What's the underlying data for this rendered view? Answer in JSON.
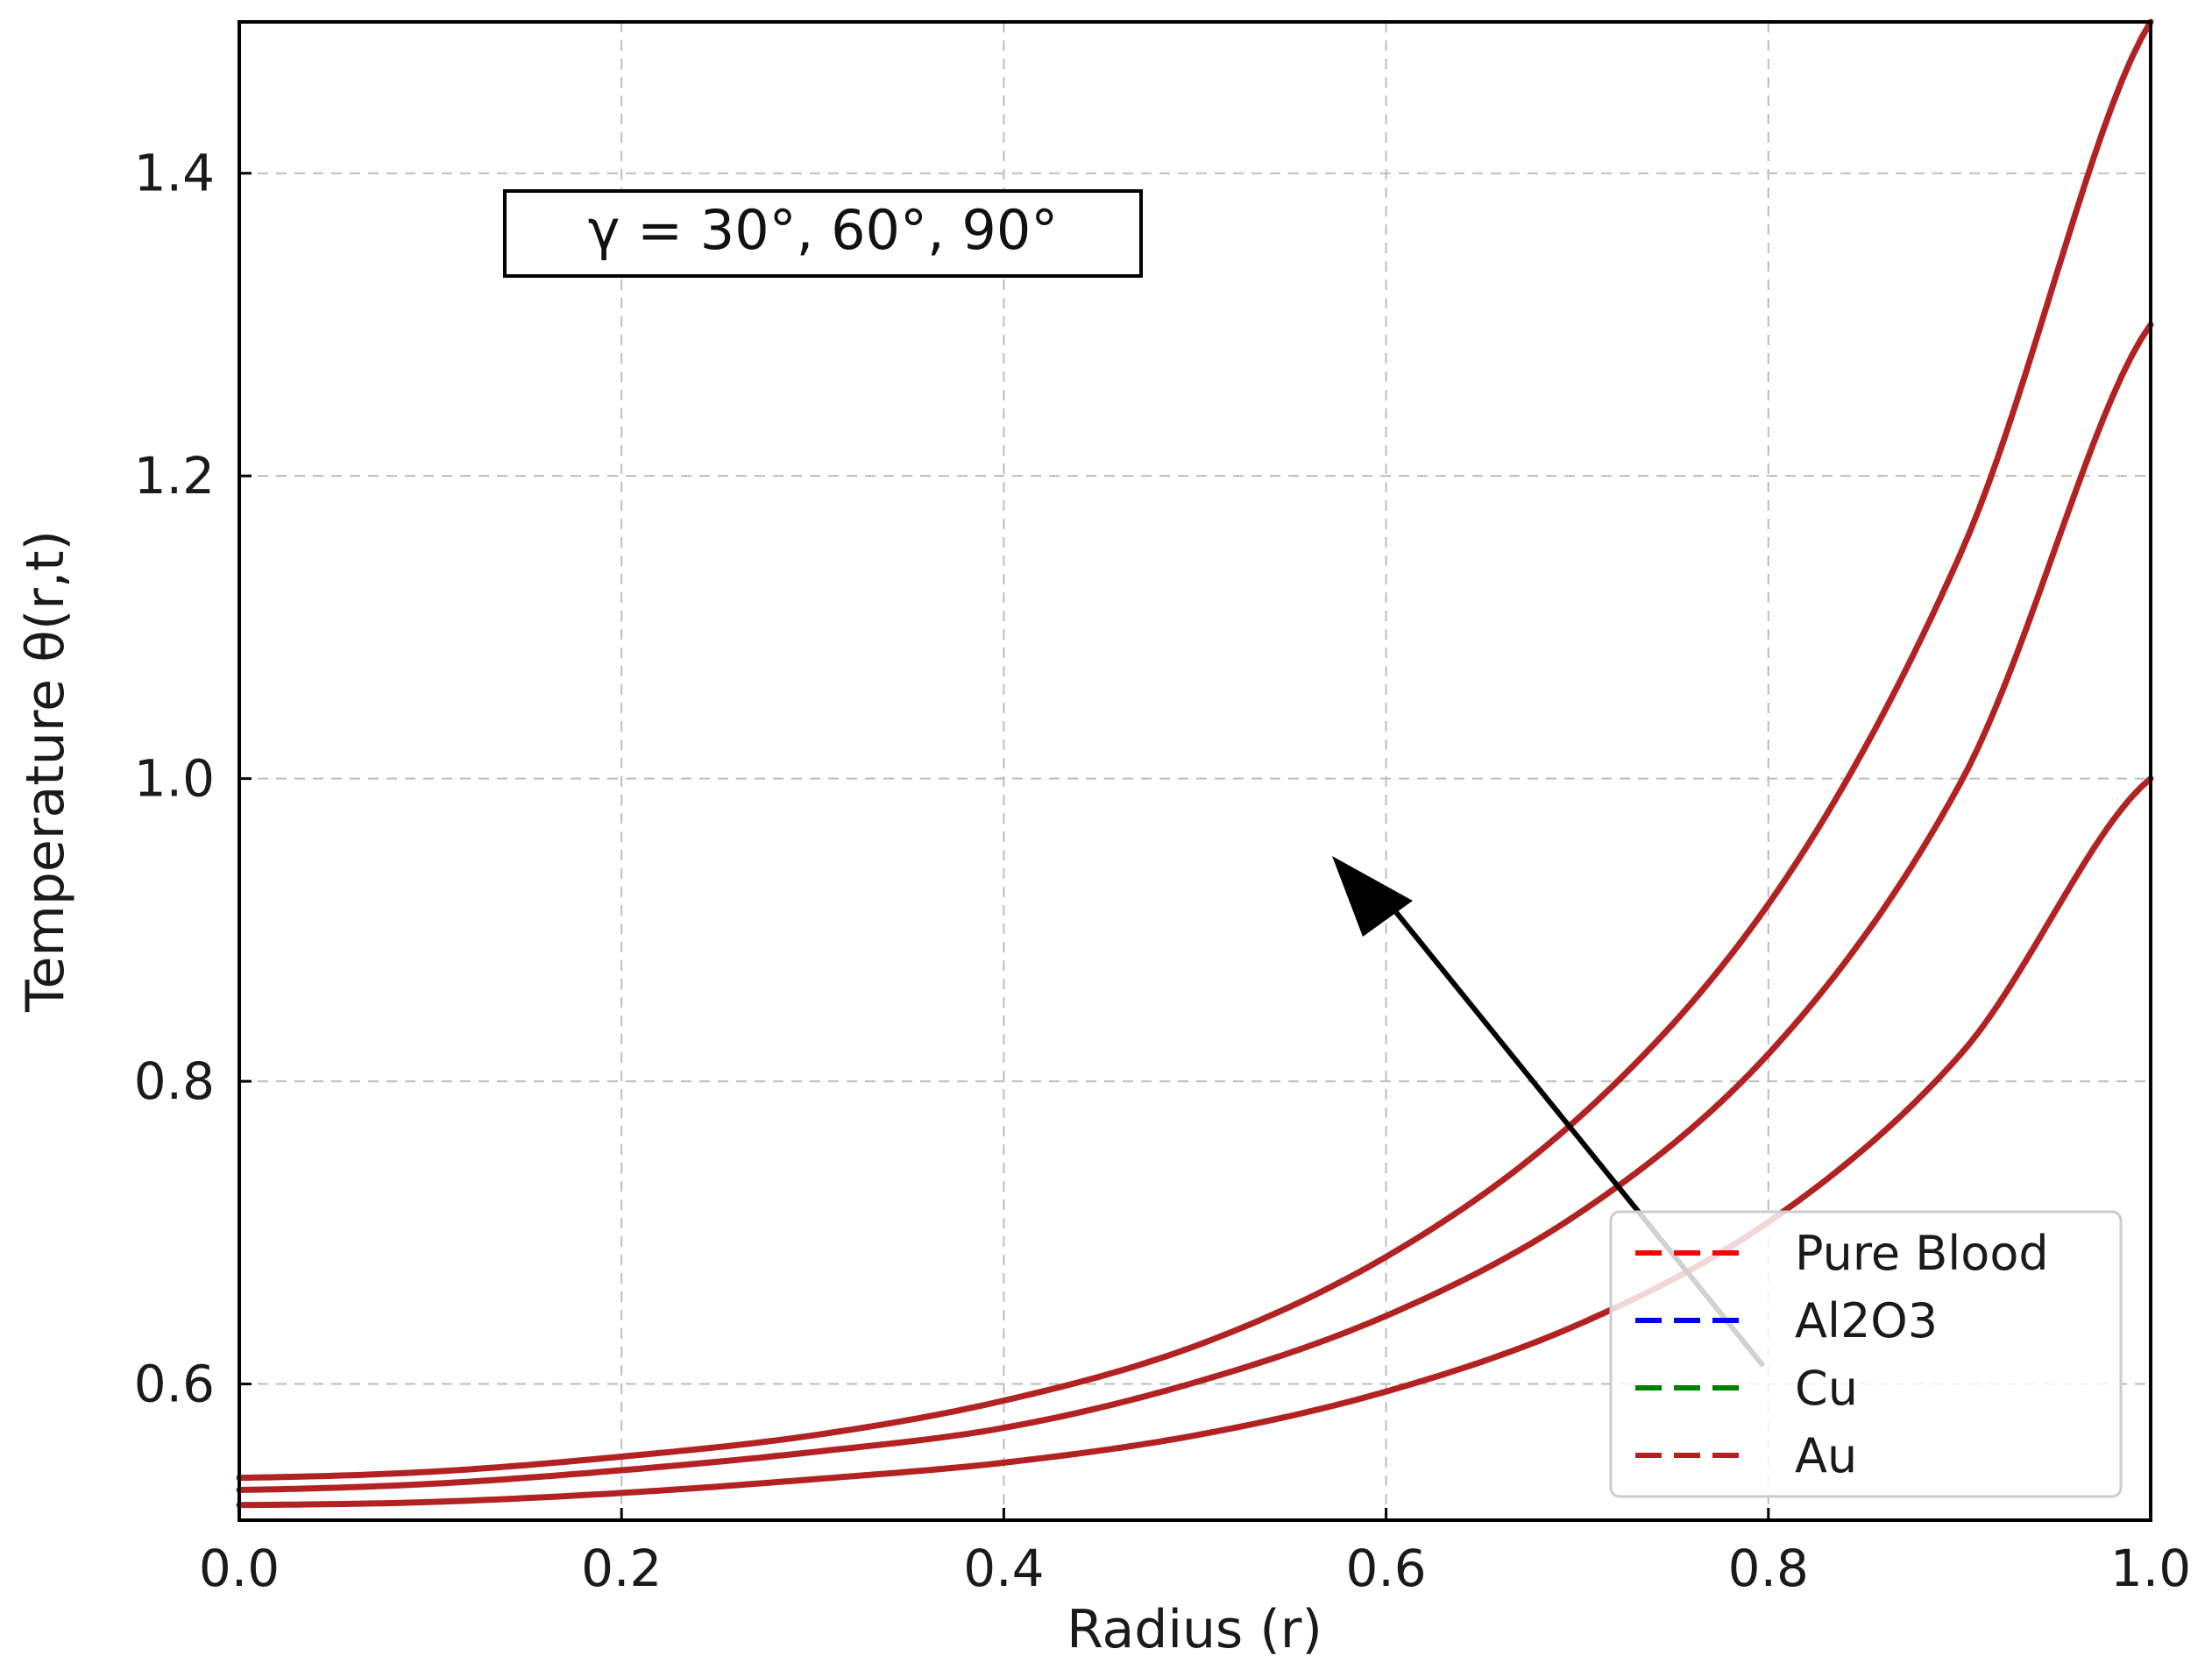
{
  "chart_data": {
    "type": "line",
    "xlabel": "Radius (r)",
    "ylabel": "Temperature θ(r,t)",
    "xlim": [
      0.0,
      1.0
    ],
    "ylim": [
      0.51,
      1.5
    ],
    "xticks": [
      0.0,
      0.2,
      0.4,
      0.6,
      0.8,
      1.0
    ],
    "xtick_labels": [
      "0.0",
      "0.2",
      "0.4",
      "0.6",
      "0.8",
      "1.0"
    ],
    "yticks": [
      0.6,
      0.8,
      1.0,
      1.2,
      1.4
    ],
    "ytick_labels": [
      "0.6",
      "0.8",
      "1.0",
      "1.2",
      "1.4"
    ],
    "grid": true,
    "legend_position": "lower-right",
    "annotation": "γ = 30°, 60°, 90°",
    "legend": [
      {
        "label": "Pure Blood",
        "color": "#ff0000"
      },
      {
        "label": "Al2O3",
        "color": "#0000ff"
      },
      {
        "label": "Cu",
        "color": "#008000"
      },
      {
        "label": "Au",
        "color": "#b22222"
      }
    ],
    "curve_color": "#b22222",
    "x": [
      0.0,
      0.1,
      0.2,
      0.3,
      0.4,
      0.5,
      0.6,
      0.7,
      0.8,
      0.9,
      1.0
    ],
    "curves": [
      {
        "values": [
          0.52,
          0.522,
          0.528,
          0.537,
          0.548,
          0.566,
          0.595,
          0.639,
          0.707,
          0.817,
          1.0
        ]
      },
      {
        "values": [
          0.53,
          0.534,
          0.543,
          0.555,
          0.571,
          0.601,
          0.645,
          0.712,
          0.818,
          0.996,
          1.3
        ]
      },
      {
        "values": [
          0.538,
          0.542,
          0.552,
          0.566,
          0.589,
          0.625,
          0.684,
          0.775,
          0.917,
          1.147,
          1.5
        ]
      }
    ]
  }
}
